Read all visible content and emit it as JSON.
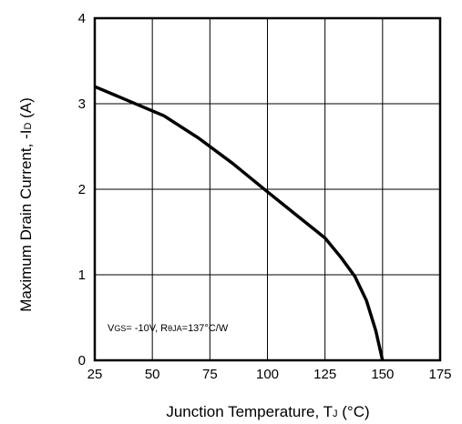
{
  "chart_data": {
    "type": "line",
    "title": "",
    "xlabel": {
      "main": "Junction Temperature, T",
      "sub": "J",
      "unit": " (°C)"
    },
    "ylabel": {
      "main": "Maximum Drain Current, -I",
      "sub": "D",
      "unit": " (A)"
    },
    "xlim": [
      25,
      175
    ],
    "ylim": [
      0,
      4
    ],
    "x_ticks": [
      25,
      50,
      75,
      100,
      125,
      150,
      175
    ],
    "y_ticks": [
      0,
      1,
      2,
      3,
      4
    ],
    "grid": true,
    "annotation": {
      "v_main": "V",
      "v_sub": "GS",
      "v_val": "= -10V, R",
      "r_sub": "θJA",
      "r_val": "=137°C/W"
    },
    "series": [
      {
        "x": [
          25,
          40,
          55,
          70,
          85,
          100,
          112.5,
          125,
          132,
          138,
          143,
          147,
          150
        ],
        "y": [
          3.2,
          3.03,
          2.86,
          2.6,
          2.3,
          1.97,
          1.7,
          1.43,
          1.2,
          0.98,
          0.7,
          0.35,
          0
        ]
      }
    ],
    "colors": {
      "line": "#000000",
      "grid": "#000000",
      "frame": "#000000"
    }
  }
}
